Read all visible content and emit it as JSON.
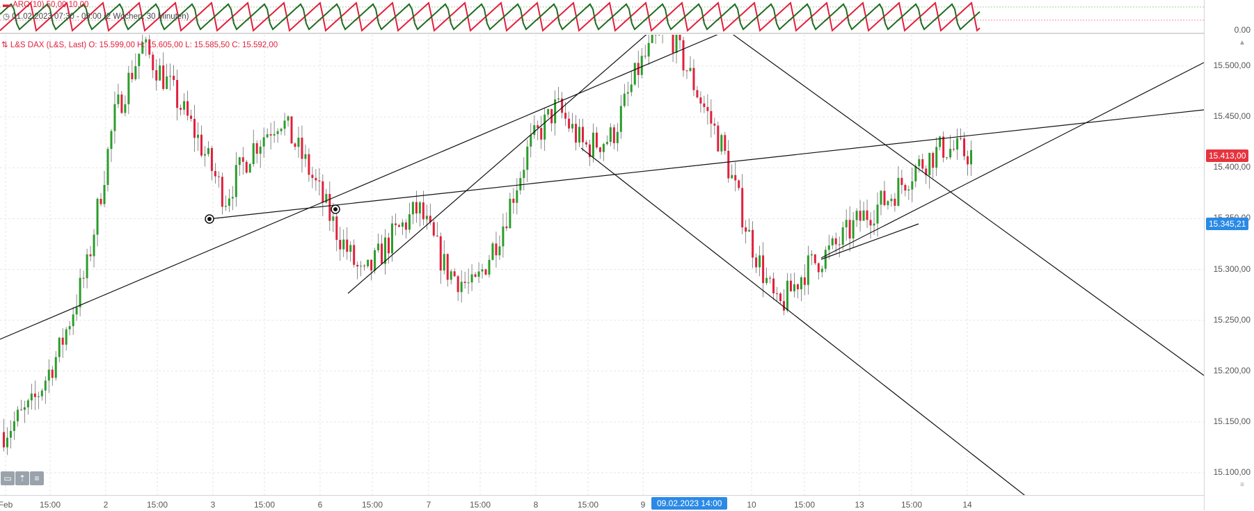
{
  "indicator": {
    "name": "ARO(10)",
    "v1": "50,00",
    "v2": "10,00",
    "subtitle": "01.02.2023 07:30 - 09:00",
    "subtitle_range": "(2 Wochen, 30 Minuten)",
    "axis_label": "0.00"
  },
  "instrument": {
    "name": "L&S DAX (L&S, Last)",
    "o": "O: 15.599,00",
    "h": "H: 15.605,00",
    "l": "L: 15.585,50",
    "c": "C: 15.592,00"
  },
  "price_axis": {
    "labels": [
      "15.500,00",
      "15.450,00",
      "15.400,00",
      "15.350,00",
      "15.300,00",
      "15.250,00",
      "15.200,00",
      "15.150,00",
      "15.100,00"
    ],
    "current_price": "15.413,00",
    "crosshair_price": "15.345,21",
    "colors": {
      "current": "#e6343f",
      "crosshair": "#2b8ae6",
      "up": "#2a9d2a",
      "down": "#e0203c"
    }
  },
  "time_axis": {
    "labels": [
      "Feb",
      "15:00",
      "2",
      "15:00",
      "3",
      "15:00",
      "6",
      "15:00",
      "7",
      "15:00",
      "8",
      "15:00",
      "9",
      "10",
      "15:00",
      "13",
      "15:00",
      "14"
    ],
    "cursor": "09.02.2023 14:00"
  },
  "toolbar": {
    "icons": [
      "collapse-icon",
      "expand-up-icon",
      "menu-icon"
    ]
  },
  "chart_data": {
    "type": "candlestick",
    "title": "L&S DAX (L&S, Last)",
    "ylim": [
      15080,
      15545
    ],
    "grid": true,
    "candles_close_sample": [
      15140,
      15165,
      15220,
      15300,
      15450,
      15520,
      15480,
      15430,
      15370,
      15420,
      15450,
      15400,
      15340,
      15290,
      15330,
      15360,
      15300,
      15280,
      15340,
      15420,
      15460,
      15420,
      15430,
      15500,
      15540,
      15480,
      15420,
      15330,
      15260,
      15300,
      15320,
      15350,
      15370,
      15400,
      15420,
      15413
    ]
  }
}
